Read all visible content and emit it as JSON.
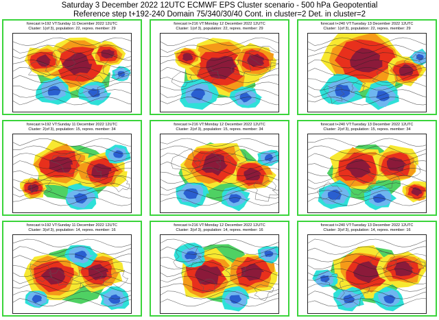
{
  "header": {
    "line1": "Saturday 3 December 2022 12UTC ECMWF EPS Cluster scenario - 500 hPa Geopotential",
    "line2": "Reference step t+192-240 Domain 75/340/30/40 Cont. in cluster=2 Det. in cluster=2"
  },
  "colors": {
    "border": "#39d43a",
    "deep_red": "#8b1a3a",
    "red": "#e8301c",
    "orange": "#f59a18",
    "yellow": "#f7e830",
    "green": "#3ccc52",
    "cyan": "#2ee0d8",
    "light_blue": "#6fb6f0",
    "blue": "#2a5fd0"
  },
  "panels": [
    {
      "line1": "forecast t+192 VT:Sunday 11 December 2022 12UTC",
      "line2": "Cluster: 1(of 3), population: 22, repres. member: 29"
    },
    {
      "line1": "forecast t+216 VT:Monday 12 December 2022 12UTC",
      "line2": "Cluster: 1(of 3), population: 22, repres. member: 29"
    },
    {
      "line1": "forecast t+240 VT:Tuesday 13 December 2022 12UTC",
      "line2": "Cluster: 1(of 3), population: 22, repres. member: 29"
    },
    {
      "line1": "forecast t+192 VT:Sunday 11 December 2022 12UTC",
      "line2": "Cluster: 2(of 3), population: 15, repres. member: 34"
    },
    {
      "line1": "forecast t+216 VT:Monday 12 December 2022 12UTC",
      "line2": "Cluster: 2(of 3), population: 15, repres. member: 34"
    },
    {
      "line1": "forecast t+240 VT:Tuesday 13 December 2022 12UTC",
      "line2": "Cluster: 2(of 3), population: 15, repres. member: 34"
    },
    {
      "line1": "forecast t+192 VT:Sunday 11 December 2022 12UTC",
      "line2": "Cluster: 3(of 3), population: 14, repres. member: 16"
    },
    {
      "line1": "forecast t+216 VT:Monday 12 December 2022 12UTC",
      "line2": "Cluster: 3(of 3), population: 14, repres. member: 16"
    },
    {
      "line1": "forecast t+240 VT:Tuesday 13 December 2022 12UTC",
      "line2": "Cluster: 3(of 3), population: 14, repres. member: 16"
    }
  ]
}
